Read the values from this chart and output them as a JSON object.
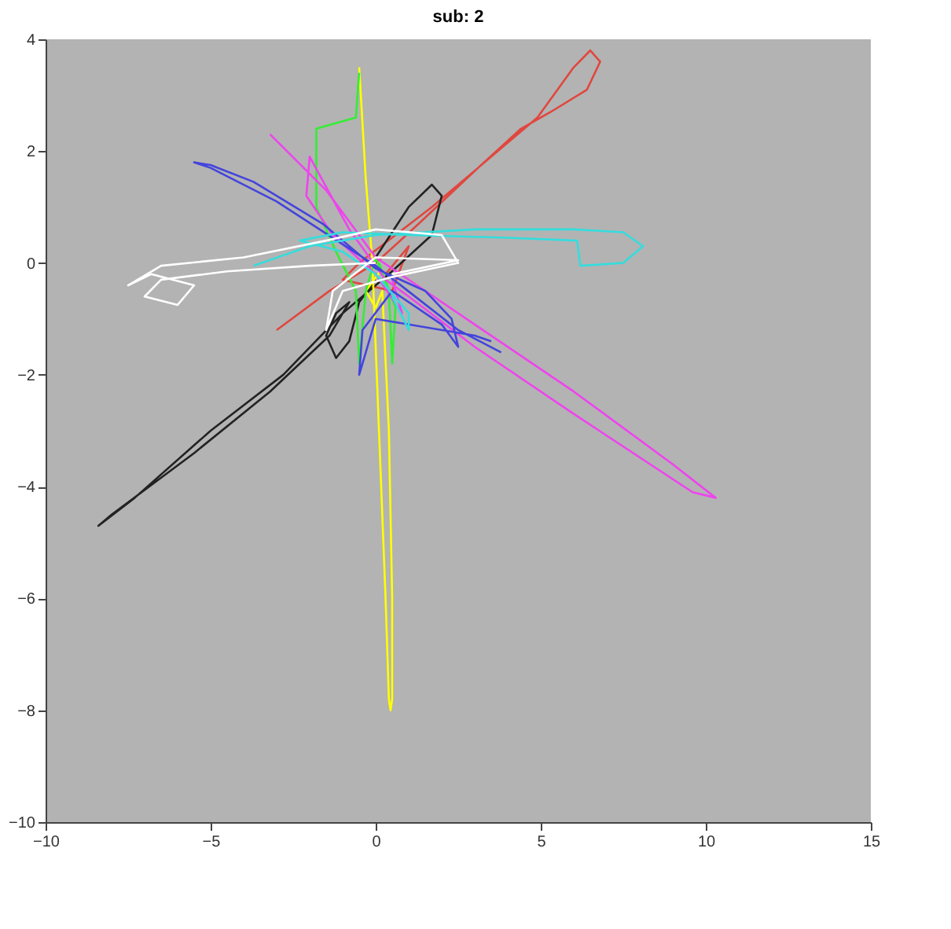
{
  "chart_data": {
    "type": "line",
    "title": "sub: 2",
    "xlim": [
      -10,
      15
    ],
    "ylim": [
      -10,
      4
    ],
    "xticks": [
      -10,
      -5,
      0,
      5,
      10,
      15
    ],
    "yticks": [
      -10,
      -8,
      -6,
      -4,
      -2,
      0,
      2,
      4
    ],
    "grid": false,
    "legend": false,
    "marker": "none",
    "line_style": "solid",
    "series": [
      {
        "color": "#e0473f",
        "x": [
          -3.0,
          -1.4,
          0,
          1.3,
          3.1,
          4.9,
          6.0,
          6.5,
          6.8,
          6.4,
          5.3,
          4.4,
          3.1,
          1.7,
          0.6,
          -0.5,
          -1.0,
          0.5,
          1.0,
          0.3
        ],
        "values": [
          -1.2,
          -0.5,
          0,
          0.7,
          1.7,
          2.6,
          3.5,
          3.8,
          3.6,
          3.1,
          2.7,
          2.4,
          1.7,
          1.0,
          0.5,
          0,
          -0.3,
          -0.5,
          0.3,
          -0.2
        ]
      },
      {
        "color": "#222222",
        "x": [
          0,
          1.0,
          1.7,
          2.0,
          1.7,
          0.4,
          -1.0,
          -2.8,
          -5.0,
          -7.3,
          -8.4,
          -8.0,
          -5.5,
          -3.2,
          -1.4,
          -0.8,
          -1.2,
          -1.5,
          -1.2,
          -0.8,
          -0.5,
          0
        ],
        "values": [
          0.1,
          1.0,
          1.4,
          1.2,
          0.5,
          -0.2,
          -0.9,
          -2.0,
          -3.0,
          -4.2,
          -4.7,
          -4.5,
          -3.4,
          -2.3,
          -1.3,
          -0.7,
          -0.9,
          -1.3,
          -1.7,
          -1.4,
          -0.7,
          -0.3
        ]
      },
      {
        "color": "#ffff00",
        "x": [
          -0.5,
          -0.3,
          -0.1,
          0.1,
          0.3,
          0.4,
          0.45,
          0.5,
          0.5,
          0.4,
          0.2,
          0.0,
          -0.3,
          0.2
        ],
        "values": [
          3.5,
          1.5,
          0,
          -3.0,
          -6.0,
          -7.8,
          -8.0,
          -7.8,
          -6.0,
          -3.0,
          -0.5,
          -0.8,
          -0.5,
          -0.1
        ]
      },
      {
        "color": "#33ee33",
        "x": [
          -0.5,
          -0.6,
          -1.8,
          -1.8,
          -1.2,
          -0.6,
          -0.5,
          -0.3,
          0,
          0.4,
          0.5,
          0.6,
          0.1
        ],
        "values": [
          3.4,
          2.6,
          2.4,
          1.0,
          0.2,
          -0.5,
          -1.8,
          -0.5,
          0.1,
          -0.5,
          -1.8,
          -0.8,
          0
        ]
      },
      {
        "color": "#ee44ee",
        "x": [
          -3.2,
          -1.5,
          0,
          3,
          6,
          9,
          10.3,
          9.6,
          6,
          3,
          1,
          0.3,
          -0.8,
          -2.0,
          -2.1,
          -1.3,
          0,
          0.8,
          0.5
        ],
        "values": [
          2.3,
          1.3,
          0.1,
          -1.1,
          -2.3,
          -3.6,
          -4.2,
          -4.1,
          -2.7,
          -1.5,
          -0.6,
          -0.3,
          0.6,
          1.9,
          1.2,
          0.5,
          -0.2,
          -0.9,
          -0.3
        ]
      },
      {
        "color": "#4444dd",
        "x": [
          3.8,
          2.5,
          0,
          -3.0,
          -5.0,
          -5.5,
          -5.0,
          -3.7,
          -1.6,
          0,
          1.5,
          2.3,
          2.5,
          2.0,
          0.5,
          -0.4,
          -0.5,
          0,
          3.0,
          3.5
        ],
        "values": [
          -1.6,
          -1.2,
          -0.05,
          1.1,
          1.7,
          1.8,
          1.75,
          1.45,
          0.7,
          -0.1,
          -0.5,
          -1.0,
          -1.5,
          -1.1,
          -0.5,
          -1.2,
          -2.0,
          -1.0,
          -1.3,
          -1.4
        ]
      },
      {
        "color": "#33dddd",
        "x": [
          -3.7,
          -2.0,
          0,
          3,
          6,
          7.5,
          8.1,
          7.5,
          6.2,
          6.1,
          4,
          1,
          -1,
          -2.3,
          -1,
          0,
          1,
          1.0,
          0.5
        ],
        "values": [
          -0.05,
          0.3,
          0.5,
          0.6,
          0.6,
          0.55,
          0.3,
          0.0,
          -0.05,
          0.4,
          0.45,
          0.5,
          0.55,
          0.4,
          0.2,
          -0.2,
          -0.9,
          -1.2,
          -0.6
        ]
      },
      {
        "color": "#ffffff",
        "x": [
          0,
          -2.0,
          -4.5,
          -6.5,
          -7.0,
          -6.0,
          -5.5,
          -6.8,
          -7.5,
          -6.5,
          -4.0,
          -1.5,
          0,
          2.0,
          2.5,
          0.5,
          -1.0,
          -1.5,
          -1.3,
          0,
          2.5,
          0.5
        ],
        "values": [
          0,
          -0.05,
          -0.15,
          -0.3,
          -0.6,
          -0.75,
          -0.4,
          -0.2,
          -0.4,
          -0.05,
          0.1,
          0.4,
          0.6,
          0.5,
          0.0,
          -0.25,
          -0.5,
          -1.2,
          -0.5,
          0.1,
          0.05,
          -0.2
        ]
      }
    ]
  }
}
